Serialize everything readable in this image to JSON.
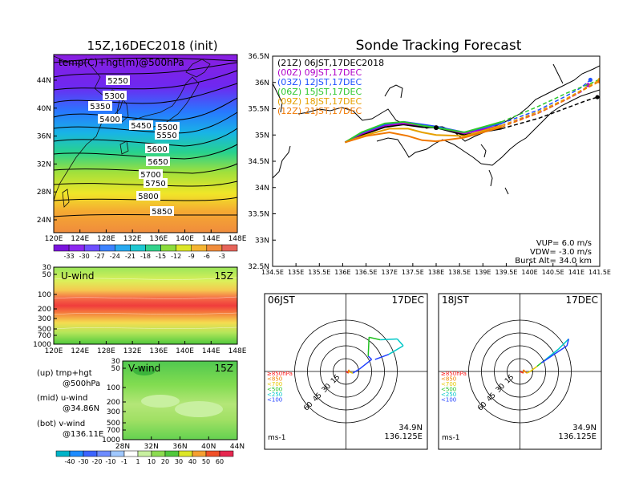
{
  "left": {
    "title": "15Z,16DEC2018 (init)",
    "map_label": "temp(C)+hgt(m)@500hPa",
    "lat_labels": [
      "44N",
      "40N",
      "36N",
      "32N",
      "28N",
      "24N"
    ],
    "lon_labels": [
      "120E",
      "124E",
      "128E",
      "132E",
      "136E",
      "140E",
      "144E",
      "148E"
    ],
    "contour_labels": [
      "5250",
      "5300",
      "5350",
      "5400",
      "5450",
      "5500",
      "5550",
      "5600",
      "5650",
      "5700",
      "5750",
      "5800",
      "5850"
    ],
    "temp_colorbar": [
      "-33",
      "-30",
      "-27",
      "-24",
      "-21",
      "-18",
      "-15",
      "-12",
      "-9",
      "-6",
      "-3"
    ],
    "uwind": {
      "label": "U-wind",
      "time": "15Z",
      "p_labels": [
        "30",
        "50",
        "100",
        "200",
        "300",
        "500",
        "700",
        "1000"
      ],
      "lon_labels": [
        "120E",
        "124E",
        "128E",
        "132E",
        "136E",
        "140E",
        "144E",
        "148E"
      ]
    },
    "vwind": {
      "label": "V-wind",
      "time": "15Z",
      "p_labels": [
        "30",
        "50",
        "100",
        "200",
        "300",
        "500",
        "700",
        "1000"
      ],
      "lat_labels": [
        "28N",
        "32N",
        "36N",
        "40N",
        "44N"
      ]
    },
    "legend": [
      "(up) tmp+hgt",
      "@500hPa",
      "(mid) u-wind",
      "@34.86N",
      "(bot) v-wind",
      "@136.11E"
    ],
    "wind_colorbar": [
      "-40",
      "-30",
      "-20",
      "-10",
      "-1",
      "1",
      "10",
      "20",
      "30",
      "40",
      "50",
      "60"
    ]
  },
  "track": {
    "title": "Sonde Tracking Forecast",
    "lat_labels": [
      "36.5N",
      "36N",
      "35.5N",
      "35N",
      "34.5N",
      "34N",
      "33.5N",
      "33N",
      "32.5N"
    ],
    "lon_labels": [
      "134.5E",
      "135E",
      "135.5E",
      "136E",
      "136.5E",
      "137E",
      "137.5E",
      "138E",
      "138.5E",
      "139E",
      "139.5E",
      "140E",
      "140.5E",
      "141E",
      "141.5E"
    ],
    "legend": [
      {
        "text": "(21Z)  06JST,17DEC2018",
        "color": "#000000"
      },
      {
        "text": "(00Z)  09JST,17DEC",
        "color": "#b000c8"
      },
      {
        "text": "(03Z)  12JST,17DEC",
        "color": "#1e50ff"
      },
      {
        "text": "(06Z)  15JST,17DEC",
        "color": "#2ec82e"
      },
      {
        "text": "(09Z)  18JST,17DEC",
        "color": "#e6a000"
      },
      {
        "text": "(12Z)  21JST,17DEC",
        "color": "#f07800"
      }
    ],
    "params": [
      "VUP=  6.0  m/s",
      "VDW= -3.0  m/s",
      "Burst Alt=  34.0  km"
    ]
  },
  "hodo1": {
    "time": "06JST",
    "date": "17DEC",
    "lat": "34.9N",
    "lon": "136.125E",
    "unit": "ms-1",
    "rings": [
      "15",
      "30",
      "45",
      "60"
    ]
  },
  "hodo2": {
    "time": "18JST",
    "date": "17DEC",
    "lat": "34.9N",
    "lon": "136.125E",
    "unit": "ms-1",
    "rings": [
      "15",
      "30",
      "45",
      "60"
    ]
  },
  "hodo_legend": [
    {
      "text": "≥850hPa",
      "color": "#ff2020"
    },
    {
      "text": "<850",
      "color": "#f08000"
    },
    {
      "text": "<700",
      "color": "#e6c800"
    },
    {
      "text": "<500",
      "color": "#20c020"
    },
    {
      "text": "<250",
      "color": "#00c8c8"
    },
    {
      "text": "<100",
      "color": "#2040ff"
    }
  ],
  "chart_data": [
    {
      "type": "line",
      "title": "Sonde Tracking Forecast",
      "xlim": [
        134.5,
        141.5
      ],
      "ylim": [
        32.5,
        36.5
      ],
      "series": [
        {
          "name": "(21Z) 06JST,17DEC2018",
          "color": "#000000",
          "x": [
            136.05,
            136.4,
            136.9,
            137.3,
            137.7,
            138.0,
            138.6,
            139.4,
            140.2,
            140.9,
            141.2,
            141.45
          ],
          "y": [
            34.86,
            35.0,
            35.15,
            35.2,
            35.15,
            35.14,
            35.0,
            35.12,
            35.32,
            35.55,
            35.65,
            35.72
          ]
        },
        {
          "name": "(00Z) 09JST,17DEC",
          "color": "#b000c8",
          "x": [
            136.05,
            136.4,
            136.9,
            137.3,
            137.7,
            138.0,
            138.6,
            139.4,
            140.2,
            140.8,
            141.1,
            141.25
          ],
          "y": [
            34.86,
            35.02,
            35.18,
            35.22,
            35.18,
            35.15,
            35.03,
            35.18,
            35.42,
            35.68,
            35.82,
            35.95
          ]
        },
        {
          "name": "(03Z) 12JST,17DEC",
          "color": "#1e50ff",
          "x": [
            136.05,
            136.4,
            136.9,
            137.3,
            137.7,
            138.0,
            138.6,
            139.4,
            140.2,
            140.8,
            141.1,
            141.3
          ],
          "y": [
            34.86,
            35.04,
            35.2,
            35.25,
            35.2,
            35.16,
            35.05,
            35.22,
            35.48,
            35.75,
            35.9,
            36.05
          ]
        },
        {
          "name": "(06Z) 15JST,17DEC",
          "color": "#2ec82e",
          "x": [
            136.05,
            136.4,
            136.9,
            137.3,
            137.7,
            138.0,
            138.6,
            139.4,
            140.2,
            140.8,
            141.3,
            141.6
          ],
          "y": [
            34.86,
            35.05,
            35.22,
            35.25,
            35.18,
            35.14,
            35.05,
            35.25,
            35.55,
            35.8,
            35.98,
            36.1
          ]
        },
        {
          "name": "(09Z) 18JST,17DEC",
          "color": "#e6a000",
          "x": [
            136.05,
            136.5,
            137.0,
            137.4,
            137.7,
            138.0,
            138.6,
            139.4,
            140.2,
            140.8,
            141.2,
            141.5
          ],
          "y": [
            34.86,
            35.0,
            35.12,
            35.12,
            35.05,
            35.0,
            34.98,
            35.18,
            35.45,
            35.7,
            35.9,
            36.05
          ]
        },
        {
          "name": "(12Z) 21JST,17DEC",
          "color": "#f07800",
          "x": [
            136.05,
            136.5,
            137.0,
            137.4,
            137.7,
            138.0,
            138.6,
            139.4,
            140.2,
            140.8,
            141.2,
            141.5
          ],
          "y": [
            34.86,
            34.98,
            35.05,
            34.98,
            34.9,
            34.88,
            34.95,
            35.15,
            35.42,
            35.68,
            35.88,
            36.02
          ]
        }
      ]
    },
    {
      "type": "scatter",
      "title": "06JST 17DEC",
      "xlabel": "ms-1",
      "rings": [
        15,
        30,
        45,
        60
      ],
      "points_uv": [
        {
          "u": 0,
          "v": 0,
          "c": "#ff2020"
        },
        {
          "u": 3,
          "v": -2,
          "c": "#ff2020"
        },
        {
          "u": 3,
          "v": 2,
          "c": "#f08000"
        },
        {
          "u": 5,
          "v": -1,
          "c": "#f08000"
        },
        {
          "u": 8,
          "v": -2,
          "c": "#e6c800"
        },
        {
          "u": 16,
          "v": 3,
          "c": "#2040ff"
        },
        {
          "u": 30,
          "v": 14,
          "c": "#2040ff"
        },
        {
          "u": 26,
          "v": 18,
          "c": "#2040ff"
        },
        {
          "u": 27,
          "v": 40,
          "c": "#20c020"
        },
        {
          "u": 40,
          "v": 37,
          "c": "#20c020"
        },
        {
          "u": 60,
          "v": 38,
          "c": "#00c8c8"
        },
        {
          "u": 67,
          "v": 30,
          "c": "#00c8c8"
        },
        {
          "u": 50,
          "v": 20,
          "c": "#00c8c8"
        },
        {
          "u": 34,
          "v": 14,
          "c": "#2040ff"
        }
      ]
    },
    {
      "type": "scatter",
      "title": "18JST 17DEC",
      "xlabel": "ms-1",
      "rings": [
        15,
        30,
        45,
        60
      ],
      "points_uv": [
        {
          "u": 0,
          "v": 0,
          "c": "#ff2020"
        },
        {
          "u": 4,
          "v": -2,
          "c": "#ff2020"
        },
        {
          "u": 4,
          "v": 2,
          "c": "#f08000"
        },
        {
          "u": 8,
          "v": -2,
          "c": "#f08000"
        },
        {
          "u": 12,
          "v": 0,
          "c": "#e6c800"
        },
        {
          "u": 20,
          "v": 6,
          "c": "#e6c800"
        },
        {
          "u": 30,
          "v": 14,
          "c": "#20c020"
        },
        {
          "u": 45,
          "v": 26,
          "c": "#00c8c8"
        },
        {
          "u": 57,
          "v": 38,
          "c": "#00c8c8"
        },
        {
          "u": 55,
          "v": 30,
          "c": "#2040ff"
        },
        {
          "u": 40,
          "v": 20,
          "c": "#2040ff"
        },
        {
          "u": 25,
          "v": 10,
          "c": "#2040ff"
        }
      ]
    }
  ]
}
